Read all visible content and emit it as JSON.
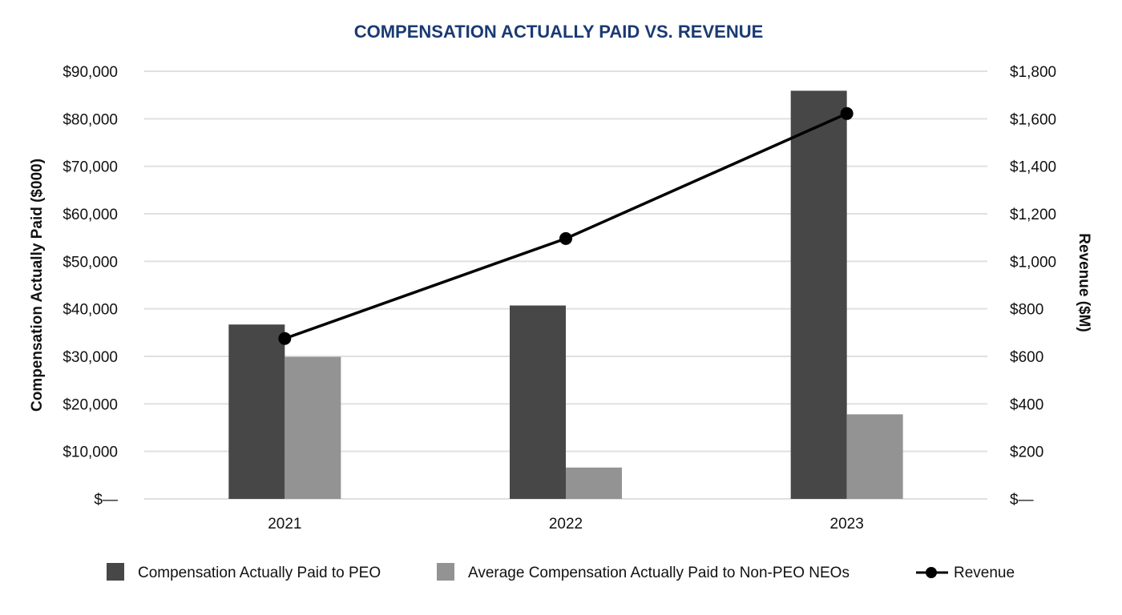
{
  "chart_data": {
    "type": "bar",
    "title": "COMPENSATION ACTUALLY PAID VS. REVENUE",
    "categories": [
      "2021",
      "2022",
      "2023"
    ],
    "series": [
      {
        "name": "Compensation Actually Paid to PEO",
        "kind": "bar",
        "axis": "left",
        "values": [
          36700,
          40700,
          85900
        ],
        "color": "#474747"
      },
      {
        "name": "Average Compensation Actually Paid to Non-PEO NEOs",
        "kind": "bar",
        "axis": "left",
        "values": [
          29900,
          6600,
          17800
        ],
        "color": "#939393"
      },
      {
        "name": "Revenue",
        "kind": "line",
        "axis": "right",
        "values": [
          675,
          1096,
          1622
        ],
        "color": "#000000"
      }
    ],
    "ylabel_left": "Compensation Actually Paid ($000)",
    "ylabel_right": "Revenue ($M)",
    "ylim_left": [
      0,
      90000
    ],
    "ylim_right": [
      0,
      1800
    ],
    "yticks_left": [
      "$—",
      "$10,000",
      "$20,000",
      "$30,000",
      "$40,000",
      "$50,000",
      "$60,000",
      "$70,000",
      "$80,000",
      "$90,000"
    ],
    "yticks_right": [
      "$—",
      "$200",
      "$400",
      "$600",
      "$800",
      "$1,000",
      "$1,200",
      "$1,400",
      "$1,600",
      "$1,800"
    ],
    "grid": true,
    "legend_position": "bottom",
    "title_color": "#1a3a73",
    "grid_color": "#e0e0e0"
  }
}
